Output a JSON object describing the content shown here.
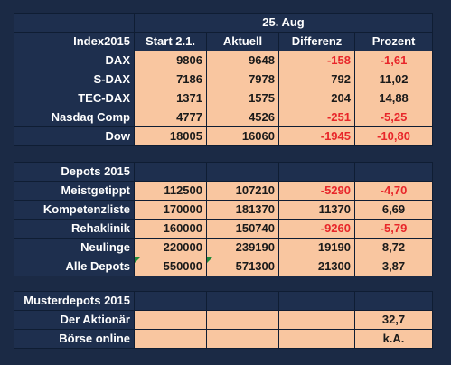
{
  "market": {
    "date_header": "25. Aug",
    "columns": [
      "Index2015",
      "Start 2.1.",
      "Aktuell",
      "Differenz",
      "Prozent"
    ],
    "rows": [
      {
        "name": "DAX",
        "start": "9806",
        "aktuell": "9648",
        "diff": "-158",
        "pct": "-1,61"
      },
      {
        "name": "S-DAX",
        "start": "7186",
        "aktuell": "7978",
        "diff": "792",
        "pct": "11,02"
      },
      {
        "name": "TEC-DAX",
        "start": "1371",
        "aktuell": "1575",
        "diff": "204",
        "pct": "14,88"
      },
      {
        "name": "Nasdaq Comp",
        "start": "4777",
        "aktuell": "4526",
        "diff": "-251",
        "pct": "-5,25"
      },
      {
        "name": "Dow",
        "start": "18005",
        "aktuell": "16060",
        "diff": "-1945",
        "pct": "-10,80"
      }
    ]
  },
  "depots": {
    "title": "Depots 2015",
    "rows": [
      {
        "name": "Meistgetippt",
        "start": "112500",
        "aktuell": "107210",
        "diff": "-5290",
        "pct": "-4,70"
      },
      {
        "name": "Kompetenzliste",
        "start": "170000",
        "aktuell": "181370",
        "diff": "11370",
        "pct": "6,69"
      },
      {
        "name": "Rehaklinik",
        "start": "160000",
        "aktuell": "150740",
        "diff": "-9260",
        "pct": "-5,79"
      },
      {
        "name": "Neulinge",
        "start": "220000",
        "aktuell": "239190",
        "diff": "19190",
        "pct": "8,72"
      },
      {
        "name": "Alle Depots",
        "start": "550000",
        "aktuell": "571300",
        "diff": "21300",
        "pct": "3,87"
      }
    ]
  },
  "muster": {
    "title": "Musterdepots 2015",
    "rows": [
      {
        "name": "Der Aktionär",
        "pct": "32,7"
      },
      {
        "name": "Börse online",
        "pct": "k.A."
      }
    ]
  },
  "colors": {
    "background": "#1b2a45",
    "header_cell": "#1e2f4e",
    "value_cell": "#f9c6a0",
    "negative_text": "#e8262a",
    "error_indicator": "#1f8a3a"
  }
}
